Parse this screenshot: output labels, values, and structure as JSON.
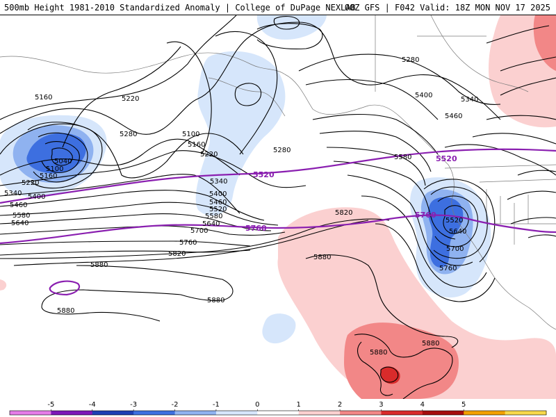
{
  "header": {
    "title_left": "500mb Height 1981-2010 Standardized Anomaly | College of DuPage NEXLAB",
    "title_right": "00Z GFS | F042 Valid: 18Z MON NOV 17 2025"
  },
  "map": {
    "height_labels": {
      "l5160": "5160",
      "l5220a": "5220",
      "l5280a": "5280",
      "l5100a": "5100",
      "l5160b": "5160",
      "l5220b": "5220",
      "l5280b": "5280",
      "l5340a": "5340",
      "l5400a": "5400",
      "l5460a": "5460",
      "l5520a": "5520",
      "l5580a": "5580",
      "l5640a": "5640",
      "l5700a": "5700",
      "l5760a": "5760",
      "l5820a": "5820",
      "l5880a": "5880",
      "l5880b": "5880",
      "l5880c": "5880",
      "l5040": "5040",
      "l5100b": "5100",
      "l5160c": "5160",
      "l5220c": "5220",
      "l5340b": "5340",
      "l5400b": "5400",
      "l5460b": "5460",
      "l5580b": "5580",
      "l5640b": "5640",
      "l5280c": "5280",
      "l5400c": "5400",
      "l5340c": "5340",
      "l5460c": "5460",
      "l5580c": "5580",
      "l5820b": "5820",
      "l5640c": "5640",
      "l5700b": "5700",
      "l5760b": "5760",
      "l5880d": "5880",
      "l5880e": "5880",
      "l5880f": "5880",
      "l5520b": "5520"
    },
    "purple_labels": {
      "p5520a": "5520",
      "p5520b": "5520",
      "p5760a": "5760",
      "p5760b": "5760"
    }
  },
  "colorbar": {
    "ticks": [
      "-5",
      "-4",
      "-3",
      "-2",
      "-1",
      "0",
      "1",
      "2",
      "3",
      "4",
      "5"
    ],
    "colors": [
      "#e57ce8",
      "#7d18b8",
      "#1e3fb3",
      "#3d6fe0",
      "#8fb2f0",
      "#d6e6fb",
      "#ffffff",
      "#fbd0d0",
      "#f28787",
      "#d92b2b",
      "#a50d0d",
      "#f2a000",
      "#f7d84a"
    ]
  }
}
